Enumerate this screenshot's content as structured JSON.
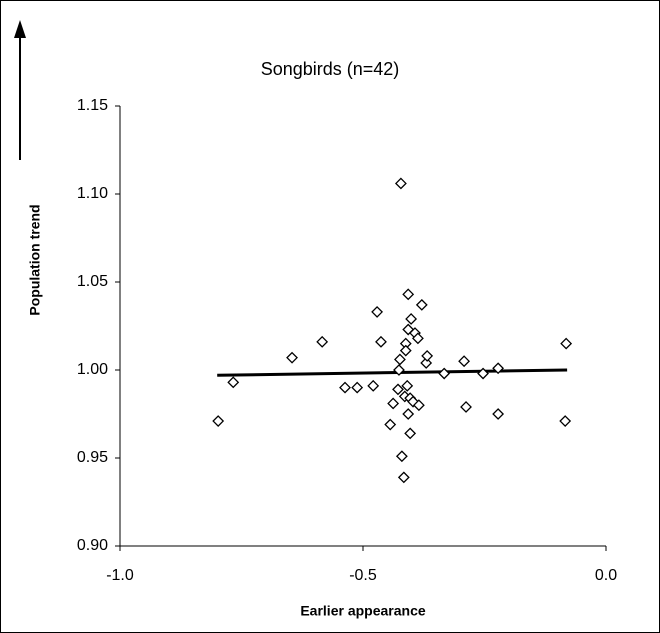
{
  "chart_data": {
    "type": "scatter",
    "title": "Songbirds (n=42)",
    "x_label": "Earlier appearance",
    "y_label": "Population trend",
    "xlim": [
      -1.0,
      0.0
    ],
    "ylim": [
      0.9,
      1.15
    ],
    "xticks": [
      {
        "value": -1.0,
        "label": "-1.0"
      },
      {
        "value": -0.5,
        "label": "-0.5"
      },
      {
        "value": 0.0,
        "label": "0.0"
      }
    ],
    "yticks": [
      {
        "value": 0.9,
        "label": "0.90"
      },
      {
        "value": 0.95,
        "label": "0.95"
      },
      {
        "value": 1.0,
        "label": "1.00"
      },
      {
        "value": 1.05,
        "label": "1.05"
      },
      {
        "value": 1.1,
        "label": "1.10"
      },
      {
        "value": 1.15,
        "label": "1.15"
      }
    ],
    "grid": false,
    "color": "#000000",
    "x": [
      -0.422,
      -0.798,
      -0.767,
      -0.646,
      -0.584,
      -0.537,
      -0.512,
      -0.479,
      -0.471,
      -0.463,
      -0.444,
      -0.438,
      -0.428,
      -0.426,
      -0.424,
      -0.42,
      -0.416,
      -0.414,
      -0.412,
      -0.412,
      -0.407,
      -0.407,
      -0.409,
      -0.407,
      -0.403,
      -0.403,
      -0.401,
      -0.397,
      -0.393,
      -0.387,
      -0.385,
      -0.37,
      -0.368,
      -0.379,
      -0.333,
      -0.292,
      -0.288,
      -0.253,
      -0.222,
      -0.222,
      -0.084,
      -0.082
    ],
    "values": [
      1.106,
      0.971,
      0.993,
      1.007,
      1.016,
      0.99,
      0.99,
      0.991,
      1.033,
      1.016,
      0.969,
      0.981,
      0.989,
      1.0,
      1.006,
      0.951,
      0.939,
      0.985,
      1.015,
      1.011,
      1.043,
      1.023,
      0.991,
      0.975,
      0.984,
      0.964,
      1.029,
      0.982,
      1.021,
      1.018,
      0.98,
      1.004,
      1.008,
      1.037,
      0.998,
      1.005,
      0.979,
      0.998,
      1.001,
      0.975,
      0.971,
      1.015
    ],
    "trendline": {
      "x": [
        -0.8,
        -0.08
      ],
      "y": [
        0.997,
        1.0
      ]
    }
  }
}
